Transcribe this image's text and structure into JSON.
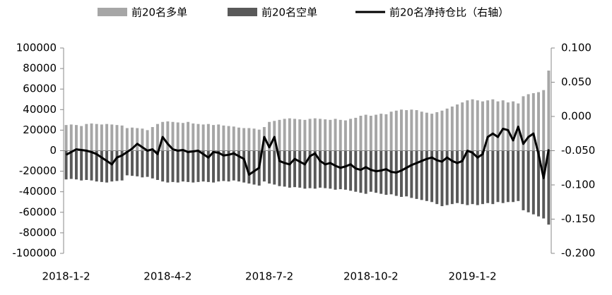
{
  "chart_data": {
    "type": "bar-line",
    "categories": [
      "2018-1-2",
      null,
      null,
      null,
      null,
      null,
      null,
      null,
      null,
      null,
      null,
      null,
      null,
      null,
      null,
      null,
      null,
      null,
      null,
      null,
      "2018-4-2",
      null,
      null,
      null,
      null,
      null,
      null,
      null,
      null,
      null,
      null,
      null,
      null,
      null,
      null,
      null,
      null,
      null,
      null,
      null,
      "2018-7-2",
      null,
      null,
      null,
      null,
      null,
      null,
      null,
      null,
      null,
      null,
      null,
      null,
      null,
      null,
      null,
      null,
      null,
      null,
      null,
      "2018-10-2",
      null,
      null,
      null,
      null,
      null,
      null,
      null,
      null,
      null,
      null,
      null,
      null,
      null,
      null,
      null,
      null,
      null,
      null,
      null,
      "2019-1-2",
      null,
      null,
      null,
      null,
      null,
      null,
      null,
      null,
      null,
      null,
      null,
      null,
      null,
      null,
      null
    ],
    "series": [
      {
        "name": "前20名多单",
        "color": "#a6a6a6",
        "values": [
          25000,
          25500,
          25000,
          24000,
          26000,
          26500,
          26000,
          25500,
          26000,
          25500,
          25000,
          24500,
          22000,
          22500,
          22000,
          21500,
          20000,
          23000,
          26000,
          28000,
          28500,
          28000,
          27500,
          27000,
          28000,
          26500,
          26000,
          25500,
          26000,
          25000,
          25500,
          24500,
          24000,
          23500,
          22500,
          22000,
          22000,
          21500,
          20500,
          23000,
          28000,
          29000,
          30000,
          31000,
          31500,
          31000,
          30500,
          30000,
          31000,
          31500,
          31000,
          30500,
          30000,
          31000,
          30000,
          29500,
          31000,
          32000,
          34000,
          35000,
          34000,
          35000,
          36000,
          35500,
          38000,
          39000,
          40000,
          39500,
          40000,
          39500,
          38000,
          37000,
          36000,
          37500,
          39000,
          41000,
          43000,
          45000,
          47000,
          49000,
          50000,
          49000,
          48000,
          49000,
          50000,
          48000,
          49000,
          47000,
          48000,
          46000,
          53000,
          55000,
          56000,
          57000,
          59000,
          78000
        ]
      },
      {
        "name": "前20名空单",
        "color": "#595959",
        "values": [
          -28000,
          -27500,
          -28000,
          -29000,
          -28500,
          -29000,
          -30000,
          -30500,
          -31000,
          -30000,
          -29500,
          -29000,
          -24000,
          -24500,
          -25000,
          -26000,
          -25500,
          -27000,
          -28500,
          -30000,
          -31000,
          -30500,
          -31000,
          -30000,
          -30500,
          -31000,
          -30500,
          -30000,
          -30500,
          -31000,
          -30000,
          -29500,
          -30000,
          -29000,
          -30000,
          -31000,
          -32000,
          -33000,
          -34000,
          -30000,
          -32000,
          -33000,
          -34500,
          -35000,
          -36000,
          -35500,
          -36000,
          -37000,
          -36500,
          -37000,
          -36000,
          -36500,
          -37000,
          -38000,
          -37500,
          -38000,
          -39000,
          -40000,
          -41000,
          -42000,
          -40000,
          -41000,
          -42000,
          -43000,
          -42500,
          -44000,
          -45000,
          -44500,
          -46000,
          -47000,
          -48000,
          -49000,
          -50000,
          -52000,
          -54000,
          -53000,
          -52000,
          -51000,
          -52000,
          -53000,
          -52000,
          -53000,
          -52000,
          -51000,
          -52000,
          -50000,
          -51000,
          -50000,
          -50000,
          -49000,
          -58000,
          -60000,
          -62000,
          -64000,
          -66000,
          -72000
        ]
      },
      {
        "name": "前20名净持仓比（右轴）",
        "color": "#000000",
        "axis": "y2",
        "values": [
          -0.056,
          -0.052,
          -0.048,
          -0.049,
          -0.05,
          -0.052,
          -0.055,
          -0.06,
          -0.065,
          -0.07,
          -0.06,
          -0.057,
          -0.052,
          -0.047,
          -0.04,
          -0.045,
          -0.05,
          -0.048,
          -0.055,
          -0.03,
          -0.04,
          -0.048,
          -0.05,
          -0.049,
          -0.052,
          -0.051,
          -0.05,
          -0.055,
          -0.06,
          -0.052,
          -0.053,
          -0.057,
          -0.056,
          -0.054,
          -0.058,
          -0.062,
          -0.085,
          -0.08,
          -0.075,
          -0.03,
          -0.045,
          -0.03,
          -0.065,
          -0.068,
          -0.07,
          -0.062,
          -0.066,
          -0.07,
          -0.058,
          -0.054,
          -0.065,
          -0.07,
          -0.068,
          -0.072,
          -0.075,
          -0.073,
          -0.07,
          -0.076,
          -0.078,
          -0.074,
          -0.078,
          -0.08,
          -0.079,
          -0.077,
          -0.081,
          -0.082,
          -0.079,
          -0.075,
          -0.071,
          -0.068,
          -0.065,
          -0.062,
          -0.06,
          -0.064,
          -0.066,
          -0.06,
          -0.065,
          -0.068,
          -0.065,
          -0.05,
          -0.053,
          -0.06,
          -0.055,
          -0.03,
          -0.025,
          -0.03,
          -0.018,
          -0.02,
          -0.035,
          -0.015,
          -0.04,
          -0.03,
          -0.025,
          -0.055,
          -0.09,
          -0.048
        ]
      }
    ],
    "ylim": [
      -100000,
      100000
    ],
    "yticks": [
      -100000,
      -80000,
      -60000,
      -40000,
      -20000,
      0,
      20000,
      40000,
      60000,
      80000,
      100000
    ],
    "y2lim": [
      -0.2,
      0.1
    ],
    "y2ticks": [
      {
        "value": -0.2,
        "label": "-0.200"
      },
      {
        "value": -0.15,
        "label": "-0.150"
      },
      {
        "value": -0.1,
        "label": "-0.100"
      },
      {
        "value": -0.05,
        "label": "-0.050"
      },
      {
        "value": 0,
        "label": "0.000"
      },
      {
        "value": 0.05,
        "label": "0.050"
      },
      {
        "value": 0.1,
        "label": "0.100"
      }
    ]
  }
}
